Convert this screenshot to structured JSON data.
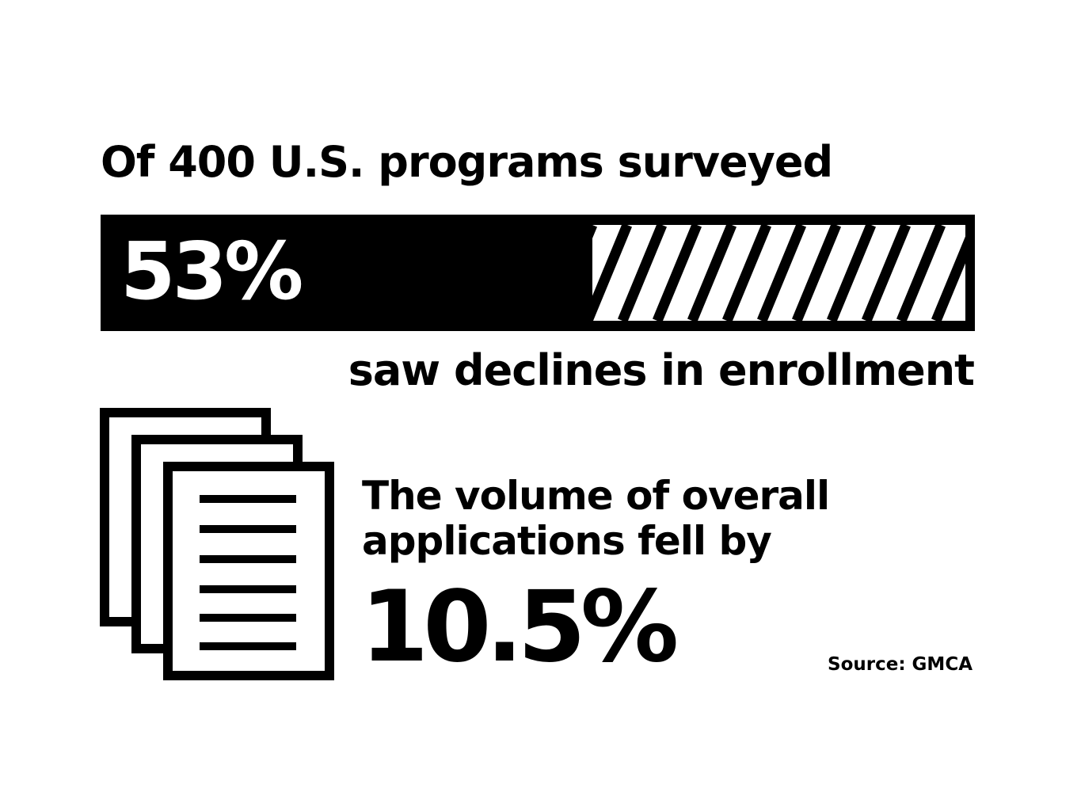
{
  "headline": "Of 400 U.S. programs surveyed",
  "progress": {
    "value_label": "53%",
    "fraction": 0.53,
    "caption": "saw declines in enrollment"
  },
  "applications": {
    "line1": "The volume of overall",
    "line2": "applications fell by",
    "value": "10.5%"
  },
  "source": "Source: GMCA",
  "icons": {
    "documents": "stacked-documents-icon"
  },
  "colors": {
    "foreground": "#000000",
    "background": "#ffffff"
  }
}
